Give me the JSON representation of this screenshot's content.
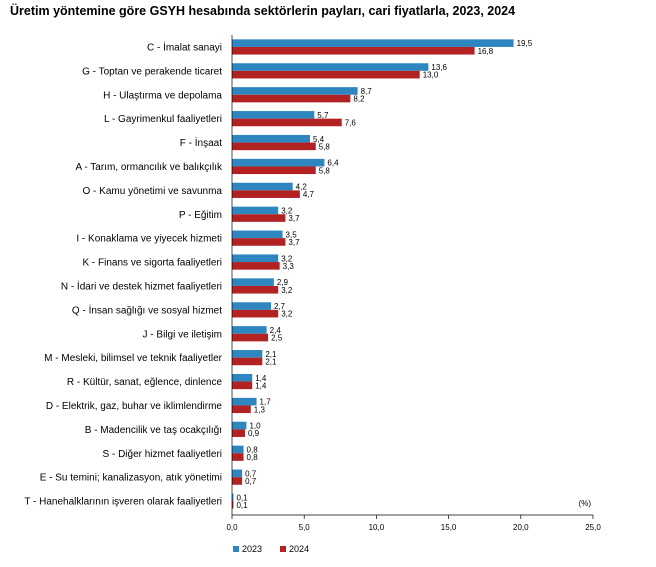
{
  "chart_data": {
    "type": "bar",
    "orientation": "horizontal",
    "title": "Üretim yöntemine göre GSYH hesabında sektörlerin payları, cari fiyatlarla, 2023, 2024",
    "unit_label": "(%)",
    "categories": [
      "C - İmalat sanayi",
      "G - Toptan ve perakende ticaret",
      "H - Ulaştırma ve depolama",
      "L - Gayrimenkul faaliyetleri",
      "F - İnşaat",
      "A - Tarım, ormancılık ve balıkçılık",
      "O - Kamu yönetimi ve savunma",
      "P - Eğitim",
      "I - Konaklama ve yiyecek hizmeti",
      "K - Finans ve sigorta faaliyetleri",
      "N - İdari ve destek hizmet faaliyetleri",
      "Q - İnsan sağlığı ve sosyal hizmet",
      "J - Bilgi ve iletişim",
      "M - Mesleki, bilimsel ve teknik faaliyetler",
      "R - Kültür, sanat, eğlence, dinlence",
      "D - Elektrik, gaz, buhar ve iklimlendirme",
      "B - Madencilik ve taş ocakçılığı",
      "S - Diğer hizmet faaliyetleri",
      "E - Su temini; kanalizasyon, atık yönetimi",
      "T - Hanehalklarının işveren olarak faaliyetleri"
    ],
    "series": [
      {
        "name": "2023",
        "color": "#2E86C1",
        "values": [
          19.5,
          13.6,
          8.7,
          5.7,
          5.4,
          6.4,
          4.2,
          3.2,
          3.5,
          3.2,
          2.9,
          2.7,
          2.4,
          2.1,
          1.4,
          1.7,
          1.0,
          0.8,
          0.7,
          0.1
        ],
        "labels": [
          "19,5",
          "13,6",
          "8,7",
          "5,7",
          "5,4",
          "6,4",
          "4,2",
          "3,2",
          "3,5",
          "3,2",
          "2,9",
          "2,7",
          "2,4",
          "2,1",
          "1,4",
          "1,7",
          "1,0",
          "0,8",
          "0,7",
          "0,1"
        ]
      },
      {
        "name": "2024",
        "color": "#B22222",
        "values": [
          16.8,
          13.0,
          8.2,
          7.6,
          5.8,
          5.8,
          4.7,
          3.7,
          3.7,
          3.3,
          3.2,
          3.2,
          2.5,
          2.1,
          1.4,
          1.3,
          0.9,
          0.8,
          0.7,
          0.1
        ],
        "labels": [
          "16,8",
          "13,0",
          "8,2",
          "7,6",
          "5,8",
          "5,8",
          "4,7",
          "3,7",
          "3,7",
          "3,3",
          "3,2",
          "3,2",
          "2,5",
          "2,1",
          "1,4",
          "1,3",
          "0,9",
          "0,8",
          "0,7",
          "0,1"
        ]
      }
    ],
    "xlim": [
      0,
      25
    ],
    "xticks": [
      0,
      5,
      10,
      15,
      20,
      25
    ],
    "xtick_labels": [
      "0,0",
      "5,0",
      "10,0",
      "15,0",
      "20,0",
      "25,0"
    ],
    "grid": false,
    "legend": "bottom-left"
  }
}
